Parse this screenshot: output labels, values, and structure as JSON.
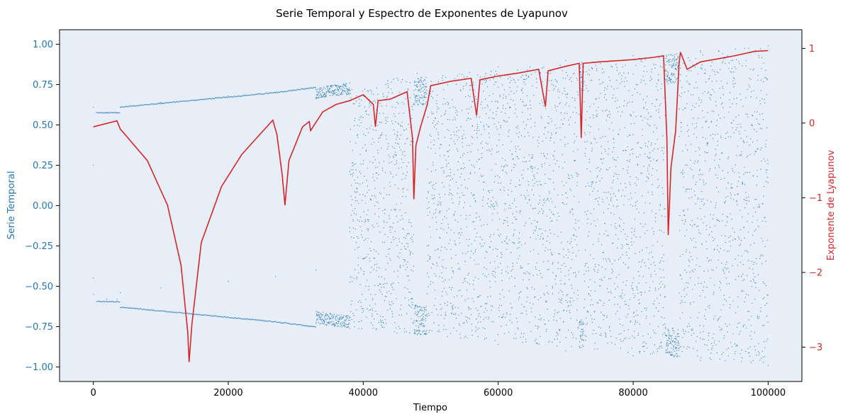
{
  "chart_data": {
    "type": "scatter",
    "title": "Serie Temporal y Espectro de Exponentes de Lyapunov",
    "xlabel": "Tiempo",
    "ylabel_left": "Serie Temporal",
    "ylabel_right": "Exponente de Lyapunov",
    "xlim": [
      -5000,
      105000
    ],
    "ylim_left": [
      -1.09,
      1.09
    ],
    "ylim_right": [
      -3.46,
      1.25
    ],
    "x_ticks": [
      0,
      20000,
      40000,
      60000,
      80000,
      100000
    ],
    "x_tick_labels": [
      "0",
      "20000",
      "40000",
      "60000",
      "80000",
      "100000"
    ],
    "y_left_ticks": [
      1.0,
      0.75,
      0.5,
      0.25,
      0.0,
      -0.25,
      -0.5,
      -0.75,
      -1.0
    ],
    "y_left_tick_labels": [
      "1.00",
      "0.75",
      "0.50",
      "0.25",
      "0.00",
      "−0.25",
      "−0.50",
      "−0.75",
      "−1.00"
    ],
    "y_right_ticks": [
      1,
      0,
      -1,
      -2,
      -3
    ],
    "y_right_tick_labels": [
      "1",
      "0",
      "−1",
      "−2",
      "−3"
    ],
    "colors": {
      "series_scatter": "#1f77b4",
      "series_lyapunov": "#d62728",
      "plot_background": "#e8eef8",
      "left_axis": "#1f77b4",
      "right_axis": "#d62728"
    },
    "series": [
      {
        "type": "scatter",
        "axis": "left",
        "description_of_shape": "bifurcation-style scatter of the time series",
        "points_approx": [
          [
            0,
            0.25
          ],
          [
            0,
            0.61
          ],
          [
            0,
            -0.45
          ],
          [
            0,
            -0.55
          ],
          [
            2000,
            0.575
          ],
          [
            2000,
            -0.58
          ],
          [
            3500,
            0.575
          ],
          [
            3500,
            -0.58
          ],
          [
            4000,
            0.61
          ],
          [
            4000,
            -0.54
          ],
          [
            10000,
            0.64
          ],
          [
            10000,
            -0.51
          ],
          [
            20000,
            0.68
          ],
          [
            20000,
            -0.47
          ],
          [
            27000,
            0.7
          ],
          [
            27000,
            -0.44
          ],
          [
            33000,
            0.72
          ],
          [
            33000,
            -0.4
          ],
          [
            38000,
            0.76
          ],
          [
            38000,
            -0.76
          ],
          [
            45000,
            0.79
          ],
          [
            45000,
            -0.79
          ],
          [
            48000,
            0.82
          ],
          [
            48000,
            -0.8
          ],
          [
            60000,
            0.86
          ],
          [
            60000,
            -0.86
          ],
          [
            70000,
            0.9
          ],
          [
            70000,
            -0.9
          ],
          [
            80000,
            0.93
          ],
          [
            80000,
            -0.93
          ],
          [
            90000,
            0.96
          ],
          [
            90000,
            -0.96
          ],
          [
            100000,
            0.99
          ],
          [
            100000,
            -0.99
          ]
        ]
      },
      {
        "type": "line",
        "axis": "right",
        "description_of_shape": "Lyapunov exponent curve",
        "points_approx": [
          [
            0,
            -0.05
          ],
          [
            3500,
            0.03
          ],
          [
            4000,
            -0.08
          ],
          [
            8000,
            -0.5
          ],
          [
            11000,
            -1.1
          ],
          [
            13000,
            -1.9
          ],
          [
            14000,
            -2.8
          ],
          [
            14200,
            -3.2
          ],
          [
            14600,
            -2.7
          ],
          [
            16000,
            -1.6
          ],
          [
            19000,
            -0.85
          ],
          [
            22000,
            -0.42
          ],
          [
            25000,
            -0.12
          ],
          [
            26600,
            0.04
          ],
          [
            27200,
            -0.15
          ],
          [
            28000,
            -0.7
          ],
          [
            28400,
            -1.1
          ],
          [
            29000,
            -0.5
          ],
          [
            31000,
            -0.05
          ],
          [
            32000,
            0.02
          ],
          [
            32200,
            -0.1
          ],
          [
            34000,
            0.15
          ],
          [
            36000,
            0.25
          ],
          [
            38000,
            0.3
          ],
          [
            40000,
            0.38
          ],
          [
            41500,
            0.25
          ],
          [
            41800,
            -0.05
          ],
          [
            42200,
            0.3
          ],
          [
            44000,
            0.32
          ],
          [
            46500,
            0.42
          ],
          [
            47300,
            -0.2
          ],
          [
            47500,
            -1.02
          ],
          [
            47800,
            -0.3
          ],
          [
            48500,
            -0.05
          ],
          [
            49500,
            0.25
          ],
          [
            50000,
            0.5
          ],
          [
            53000,
            0.56
          ],
          [
            56000,
            0.6
          ],
          [
            56800,
            0.1
          ],
          [
            57300,
            0.58
          ],
          [
            60000,
            0.63
          ],
          [
            63000,
            0.67
          ],
          [
            66000,
            0.72
          ],
          [
            67000,
            0.22
          ],
          [
            67400,
            0.7
          ],
          [
            70000,
            0.76
          ],
          [
            72000,
            0.8
          ],
          [
            72300,
            -0.2
          ],
          [
            72600,
            0.8
          ],
          [
            75000,
            0.82
          ],
          [
            80000,
            0.85
          ],
          [
            83000,
            0.88
          ],
          [
            84500,
            0.9
          ],
          [
            85000,
            -0.2
          ],
          [
            85200,
            -1.5
          ],
          [
            85600,
            -0.6
          ],
          [
            86300,
            -0.1
          ],
          [
            86800,
            0.8
          ],
          [
            87000,
            0.95
          ],
          [
            88000,
            0.72
          ],
          [
            90000,
            0.82
          ],
          [
            95000,
            0.9
          ],
          [
            98000,
            0.96
          ],
          [
            100000,
            0.97
          ]
        ]
      }
    ],
    "grid": false,
    "legend": "none"
  }
}
